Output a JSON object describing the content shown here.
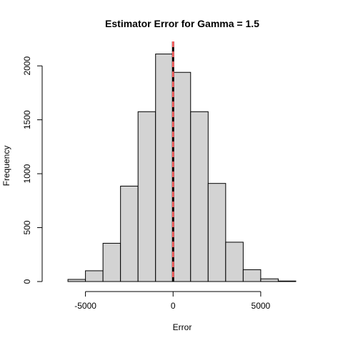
{
  "chart_data": {
    "type": "bar",
    "title": "Estimator Error for Gamma =  1.5",
    "xlabel": "Error",
    "ylabel": "Frequency",
    "bin_edges": [
      -6000,
      -5000,
      -4000,
      -3000,
      -2000,
      -1000,
      0,
      1000,
      2000,
      3000,
      4000,
      5000,
      6000,
      7000
    ],
    "values": [
      20,
      100,
      355,
      885,
      1575,
      2110,
      1940,
      1575,
      910,
      365,
      110,
      25,
      5
    ],
    "xlim": [
      -6900,
      7900
    ],
    "ylim": [
      0,
      2200
    ],
    "x_ticks": [
      -5000,
      0,
      5000
    ],
    "x_tick_labels": [
      "-5000",
      "0",
      "5000"
    ],
    "y_ticks": [
      0,
      500,
      1000,
      1500,
      2000
    ],
    "y_tick_labels": [
      "0",
      "500",
      "1000",
      "1500",
      "2000"
    ],
    "bar_color": "#d3d3d3",
    "bar_edge_color": "#000000",
    "vlines": [
      {
        "x": 0,
        "color": "#000000",
        "style": "solid"
      },
      {
        "x": 0,
        "color": "#ff5a5a",
        "style": "dashed"
      }
    ],
    "grid": false,
    "legend": "none"
  }
}
